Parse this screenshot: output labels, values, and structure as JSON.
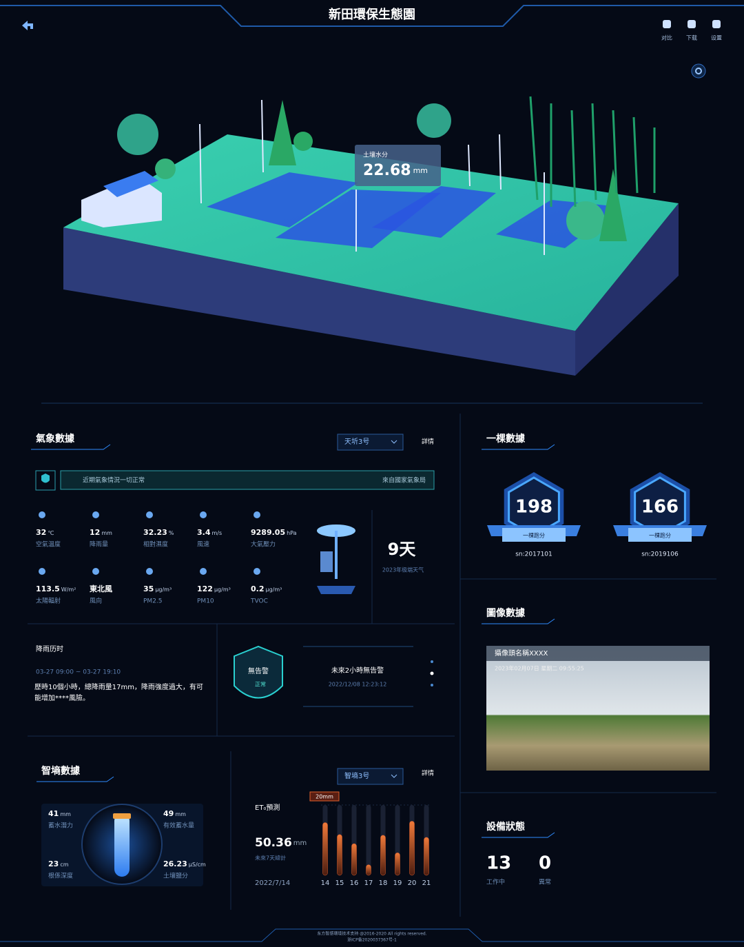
{
  "header": {
    "title": "新田環保生態園",
    "actions": [
      "对比",
      "下载",
      "设置"
    ]
  },
  "scene": {
    "tooltip": {
      "label": "土壤水分",
      "value": "22.68",
      "unit": "mm"
    }
  },
  "weather": {
    "title": "氣象數據",
    "select": "天圻3号",
    "detail": "詳情",
    "notice": "近期氣象情況一切正常",
    "source": "來自國家氣象局",
    "metrics": [
      {
        "value": "32",
        "unit": "℃",
        "label": "空氣溫度"
      },
      {
        "value": "12",
        "unit": "mm",
        "label": "降雨量"
      },
      {
        "value": "32.23",
        "unit": "%",
        "label": "相對濕度"
      },
      {
        "value": "3.4",
        "unit": "m/s",
        "label": "風速"
      },
      {
        "value": "9289.05",
        "unit": "hPa",
        "label": "大氣壓力"
      },
      {
        "value": "113.5",
        "unit": "W/m²",
        "label": "太陽輻射"
      },
      {
        "value": "東北風",
        "unit": "",
        "label": "風向"
      },
      {
        "value": "35",
        "unit": "μg/m³",
        "label": "PM2.5"
      },
      {
        "value": "122",
        "unit": "μg/m³",
        "label": "PM10"
      },
      {
        "value": "0.2",
        "unit": "μg/m³",
        "label": "TVOC"
      }
    ],
    "extreme": {
      "value": "9天",
      "label": "2023年极端天气"
    }
  },
  "rain": {
    "title": "降雨历时",
    "time": "03-27 09:00 ~ 03-27 19:10",
    "text": "歷時10個小時，總降雨量17mm，降雨強度過大，有可能增加****風險。"
  },
  "alert": {
    "badge": "無告警",
    "status": "正常",
    "message": "未來2小時無告警",
    "time": "2022/12/08  12:23:12"
  },
  "trees": {
    "title": "一棵數據",
    "items": [
      {
        "value": "198",
        "label": "一棵跑分",
        "sn": "sn:2017101"
      },
      {
        "value": "166",
        "label": "一棵跑分",
        "sn": "sn:2019106"
      }
    ]
  },
  "image": {
    "title": "圖像數據",
    "camera": "攝像頭名稱XXXX",
    "timestamp": "2023年02月07日 星期二 09:55:25"
  },
  "soil": {
    "title": "智墒數據",
    "select": "智墒3号",
    "detail": "詳情",
    "metrics": [
      {
        "value": "41",
        "unit": "mm",
        "label": "蓄水潛力"
      },
      {
        "value": "49",
        "unit": "mm",
        "label": "有效蓄水量"
      },
      {
        "value": "23",
        "unit": "cm",
        "label": "根係深度"
      },
      {
        "value": "26.23",
        "unit": "μS/cm",
        "label": "土壤鹽分"
      }
    ]
  },
  "et": {
    "title": "ET₀預測",
    "value": "50.36",
    "unit": "mm",
    "label": "未來7天總計",
    "date": "2022/7/14"
  },
  "chart_data": {
    "type": "bar",
    "categories": [
      "14",
      "15",
      "16",
      "17",
      "18",
      "19",
      "20",
      "21"
    ],
    "values": [
      15,
      11.6,
      9,
      3,
      11.4,
      6.4,
      15.4,
      10.8
    ],
    "color": "#e0602c",
    "ylim": [
      0,
      20
    ],
    "yticks": [
      {
        "value": 20,
        "label": "20mm"
      }
    ]
  },
  "device": {
    "title": "設備狀態",
    "items": [
      {
        "value": "13",
        "label": "工作中"
      },
      {
        "value": "0",
        "label": "異常"
      }
    ]
  },
  "footer": {
    "lines": [
      "东方智感環境技术支持 @2016-2020 All rights reserved.",
      "浙ICP备2020037367号-1"
    ]
  }
}
